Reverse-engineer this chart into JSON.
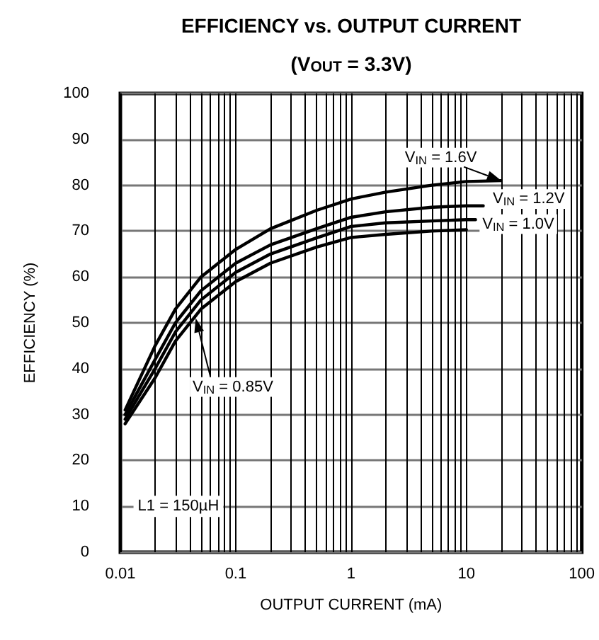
{
  "chart_data": {
    "type": "line",
    "title": "EFFICIENCY vs. OUTPUT CURRENT",
    "subtitle": "(V$_{OUT}$ = 3.3V)",
    "xlabel": "OUTPUT CURRENT (mA)",
    "ylabel": "EFFICIENCY (%)",
    "log": "x",
    "xlim": [
      0.01,
      100
    ],
    "xticks": [
      0.01,
      0.1,
      1,
      10,
      100
    ],
    "ylim": [
      0,
      100
    ],
    "yticks": [
      0,
      10,
      20,
      30,
      40,
      50,
      60,
      70,
      80,
      90,
      100
    ],
    "grid": true,
    "marker": "none",
    "line_style": "solid",
    "annotations": [
      "L1 = 150µH"
    ],
    "series": [
      {
        "name": "V$_{IN}$ = 1.6V",
        "color": "#000000",
        "x": [
          0.011,
          0.02,
          0.03,
          0.05,
          0.1,
          0.2,
          0.5,
          1,
          2,
          5,
          10,
          20
        ],
        "values": [
          31,
          45,
          53,
          60,
          66,
          70.5,
          74.5,
          77,
          78.5,
          80,
          80.8,
          81
        ]
      },
      {
        "name": "V$_{IN}$ = 1.2V",
        "color": "#000000",
        "x": [
          0.011,
          0.02,
          0.03,
          0.05,
          0.1,
          0.2,
          0.5,
          1,
          2,
          5,
          10,
          14
        ],
        "values": [
          30,
          42,
          50,
          57,
          63,
          67,
          70.5,
          73,
          74.2,
          75.2,
          75.5,
          75.5
        ]
      },
      {
        "name": "V$_{IN}$ = 1.0V",
        "color": "#000000",
        "x": [
          0.011,
          0.02,
          0.03,
          0.05,
          0.1,
          0.2,
          0.5,
          1,
          2,
          5,
          10,
          12
        ],
        "values": [
          29,
          40,
          48,
          55,
          61,
          65,
          68.5,
          71,
          71.8,
          72.2,
          72.5,
          72.5
        ]
      },
      {
        "name": "V$_{IN}$ = 0.85V",
        "color": "#000000",
        "x": [
          0.011,
          0.02,
          0.03,
          0.05,
          0.1,
          0.2,
          0.5,
          1,
          2,
          5,
          10
        ],
        "values": [
          28,
          38,
          46,
          53,
          59,
          63,
          66.5,
          68.6,
          69.3,
          70,
          70.3
        ]
      }
    ]
  }
}
